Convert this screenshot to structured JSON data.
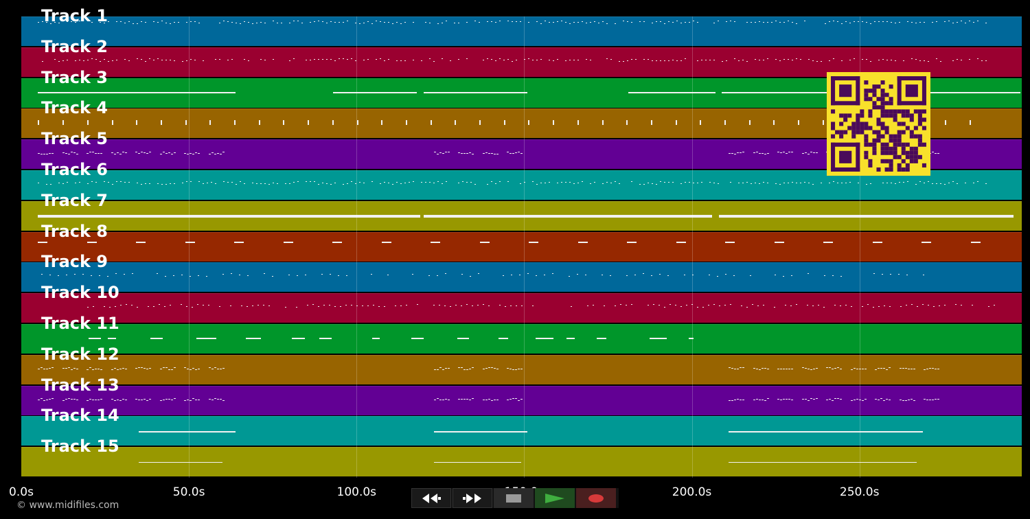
{
  "tracks": [
    {
      "label": "Track 1",
      "color": "#00689a",
      "pattern": "dots-dense"
    },
    {
      "label": "Track 2",
      "color": "#9a0030",
      "pattern": "dots-dense"
    },
    {
      "label": "Track 3",
      "color": "#00962a",
      "pattern": "long-lines"
    },
    {
      "label": "Track 4",
      "color": "#986400",
      "pattern": "spikes"
    },
    {
      "label": "Track 5",
      "color": "#620094",
      "pattern": "groups"
    },
    {
      "label": "Track 6",
      "color": "#009894",
      "pattern": "dots-dense"
    },
    {
      "label": "Track 7",
      "color": "#989800",
      "pattern": "thick-lines"
    },
    {
      "label": "Track 8",
      "color": "#962800",
      "pattern": "dashes"
    },
    {
      "label": "Track 9",
      "color": "#00689a",
      "pattern": "sparse"
    },
    {
      "label": "Track 10",
      "color": "#9a0030",
      "pattern": "dots-mid"
    },
    {
      "label": "Track 11",
      "color": "#00962a",
      "pattern": "clusters"
    },
    {
      "label": "Track 12",
      "color": "#986400",
      "pattern": "groups"
    },
    {
      "label": "Track 13",
      "color": "#620094",
      "pattern": "groups"
    },
    {
      "label": "Track 14",
      "color": "#009894",
      "pattern": "thick-groups"
    },
    {
      "label": "Track 15",
      "color": "#989800",
      "pattern": "thin-groups"
    }
  ],
  "time_axis": {
    "ticks": [
      "0.0s",
      "50.0s",
      "100.0s",
      "150.0s",
      "200.0s",
      "250.0s"
    ],
    "tick_values": [
      0,
      50,
      100,
      150,
      200,
      250
    ],
    "max_seconds": 298.4
  },
  "copyright": "© www.midifiles.com",
  "transport": {
    "rewind_icon": "rewind-icon",
    "forward_icon": "fast-forward-icon",
    "stop_icon": "stop-icon",
    "play_icon": "play-icon",
    "record_icon": "record-icon"
  },
  "colors": {
    "play": "#3fae3f",
    "record": "#d83a3a",
    "qr": "#f8e12b",
    "qr_dark": "#4a0a5a"
  },
  "qr_icon": "qr-code-icon"
}
